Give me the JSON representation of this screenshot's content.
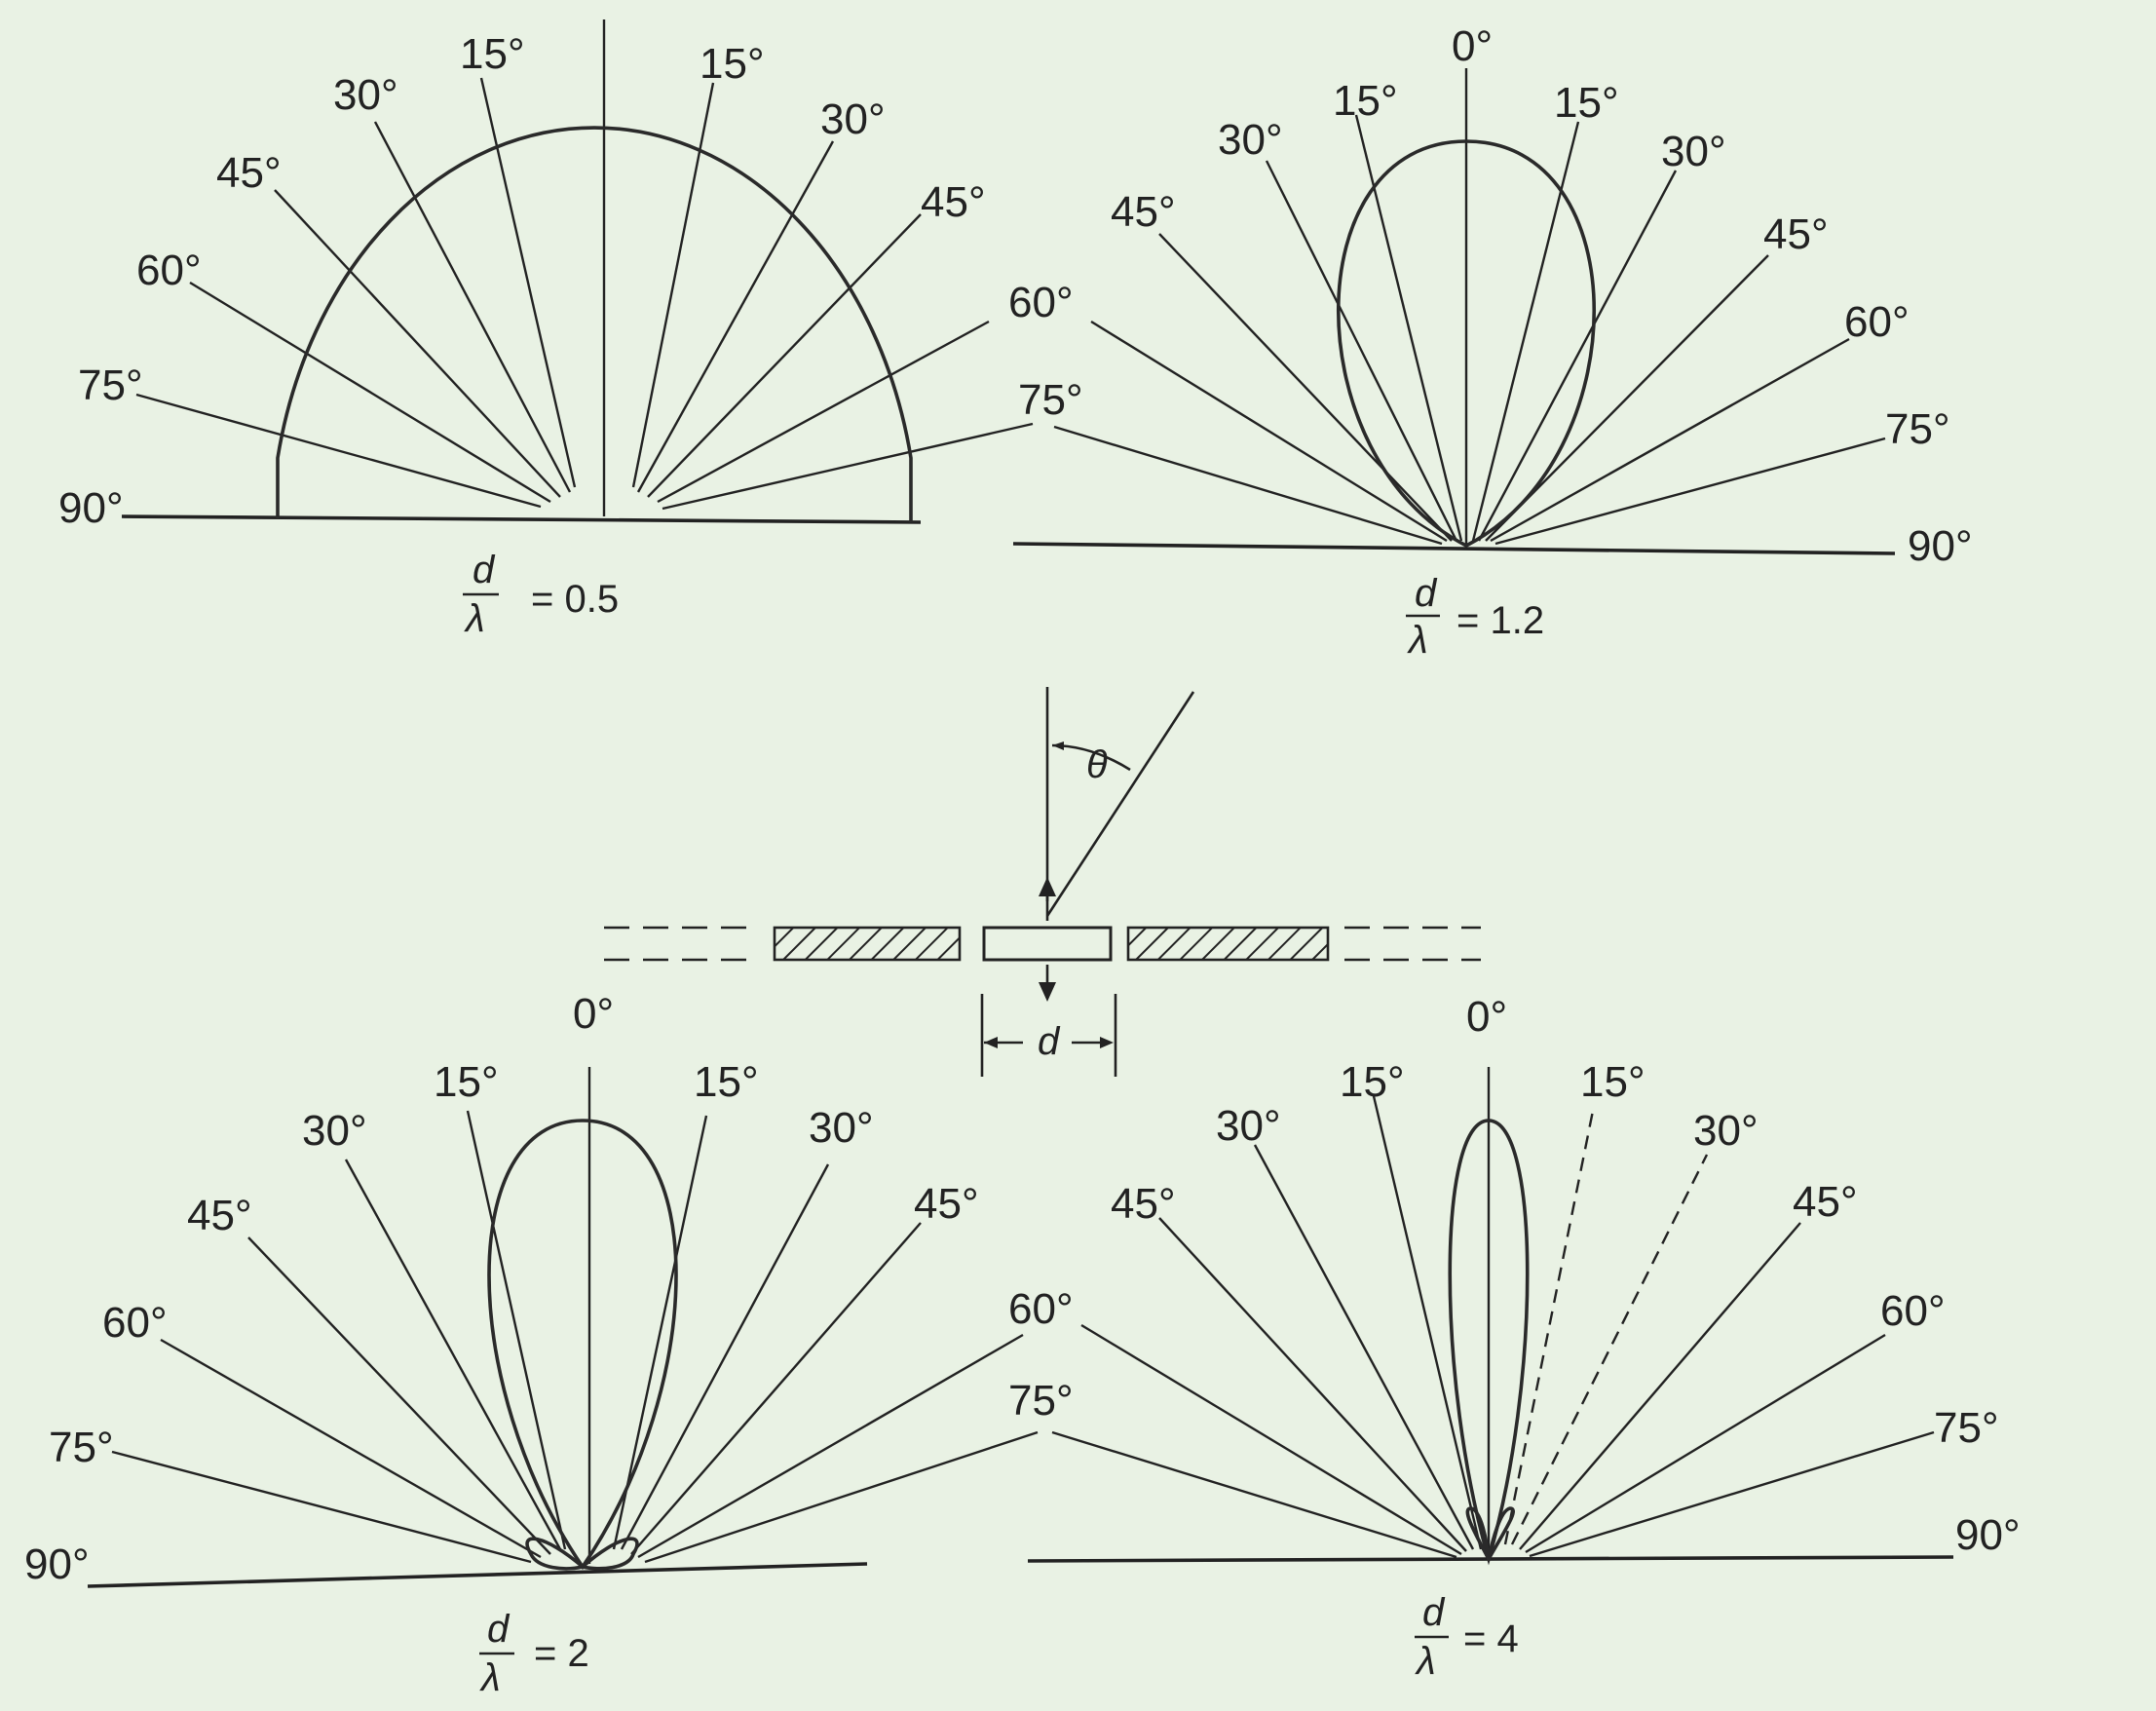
{
  "background_color": "#e9f2e4",
  "ink_color": "#222222",
  "panels": [
    {
      "id": "d05",
      "ratio_label": "= 0.5",
      "fraction": {
        "numerator": "d",
        "denominator": "λ"
      },
      "angles": {
        "left": [
          "15°",
          "30°",
          "45°",
          "60°",
          "75°",
          "90°"
        ],
        "right": [
          "15°",
          "30°",
          "45°",
          "60°",
          "75°"
        ]
      }
    },
    {
      "id": "d12",
      "ratio_label": "= 1.2",
      "fraction": {
        "numerator": "d",
        "denominator": "λ"
      },
      "angles": {
        "top": "0°",
        "left": [
          "15°",
          "30°",
          "45°",
          "60°",
          "75°"
        ],
        "right": [
          "15°",
          "30°",
          "45°",
          "60°",
          "75°",
          "90°"
        ]
      }
    },
    {
      "id": "d2",
      "ratio_label": "= 2",
      "fraction": {
        "numerator": "d",
        "denominator": "λ"
      },
      "angles": {
        "top": "0°",
        "left": [
          "15°",
          "30°",
          "45°",
          "60°",
          "75°",
          "90°"
        ],
        "right": [
          "15°",
          "30°",
          "45°",
          "60°",
          "75°"
        ]
      }
    },
    {
      "id": "d4",
      "ratio_label": "= 4",
      "fraction": {
        "numerator": "d",
        "denominator": "λ"
      },
      "angles": {
        "top": "0°",
        "left": [
          "15°",
          "30°",
          "45°",
          "60°",
          "75°"
        ],
        "right": [
          "15°",
          "30°",
          "45°",
          "60°",
          "75°",
          "90°"
        ]
      }
    }
  ],
  "schematic": {
    "angle_symbol": "θ",
    "spacing_symbol": "d"
  }
}
